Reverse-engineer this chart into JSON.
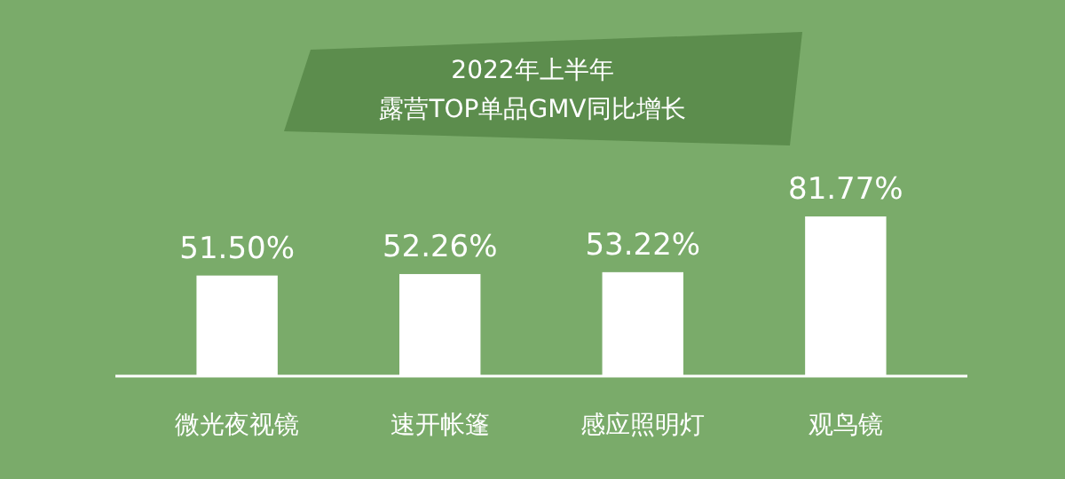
{
  "chart_data": {
    "type": "bar",
    "title": "2022年上半年",
    "subtitle": "露营TOP单品GMV同比增长",
    "categories": [
      "微光夜视镜",
      "速开帐篷",
      "感应照明灯",
      "观鸟镜"
    ],
    "values": [
      51.5,
      52.26,
      53.22,
      81.77
    ],
    "value_labels": [
      "51.50%",
      "52.26%",
      "53.22%",
      "81.77%"
    ],
    "color": "#ffffff"
  }
}
